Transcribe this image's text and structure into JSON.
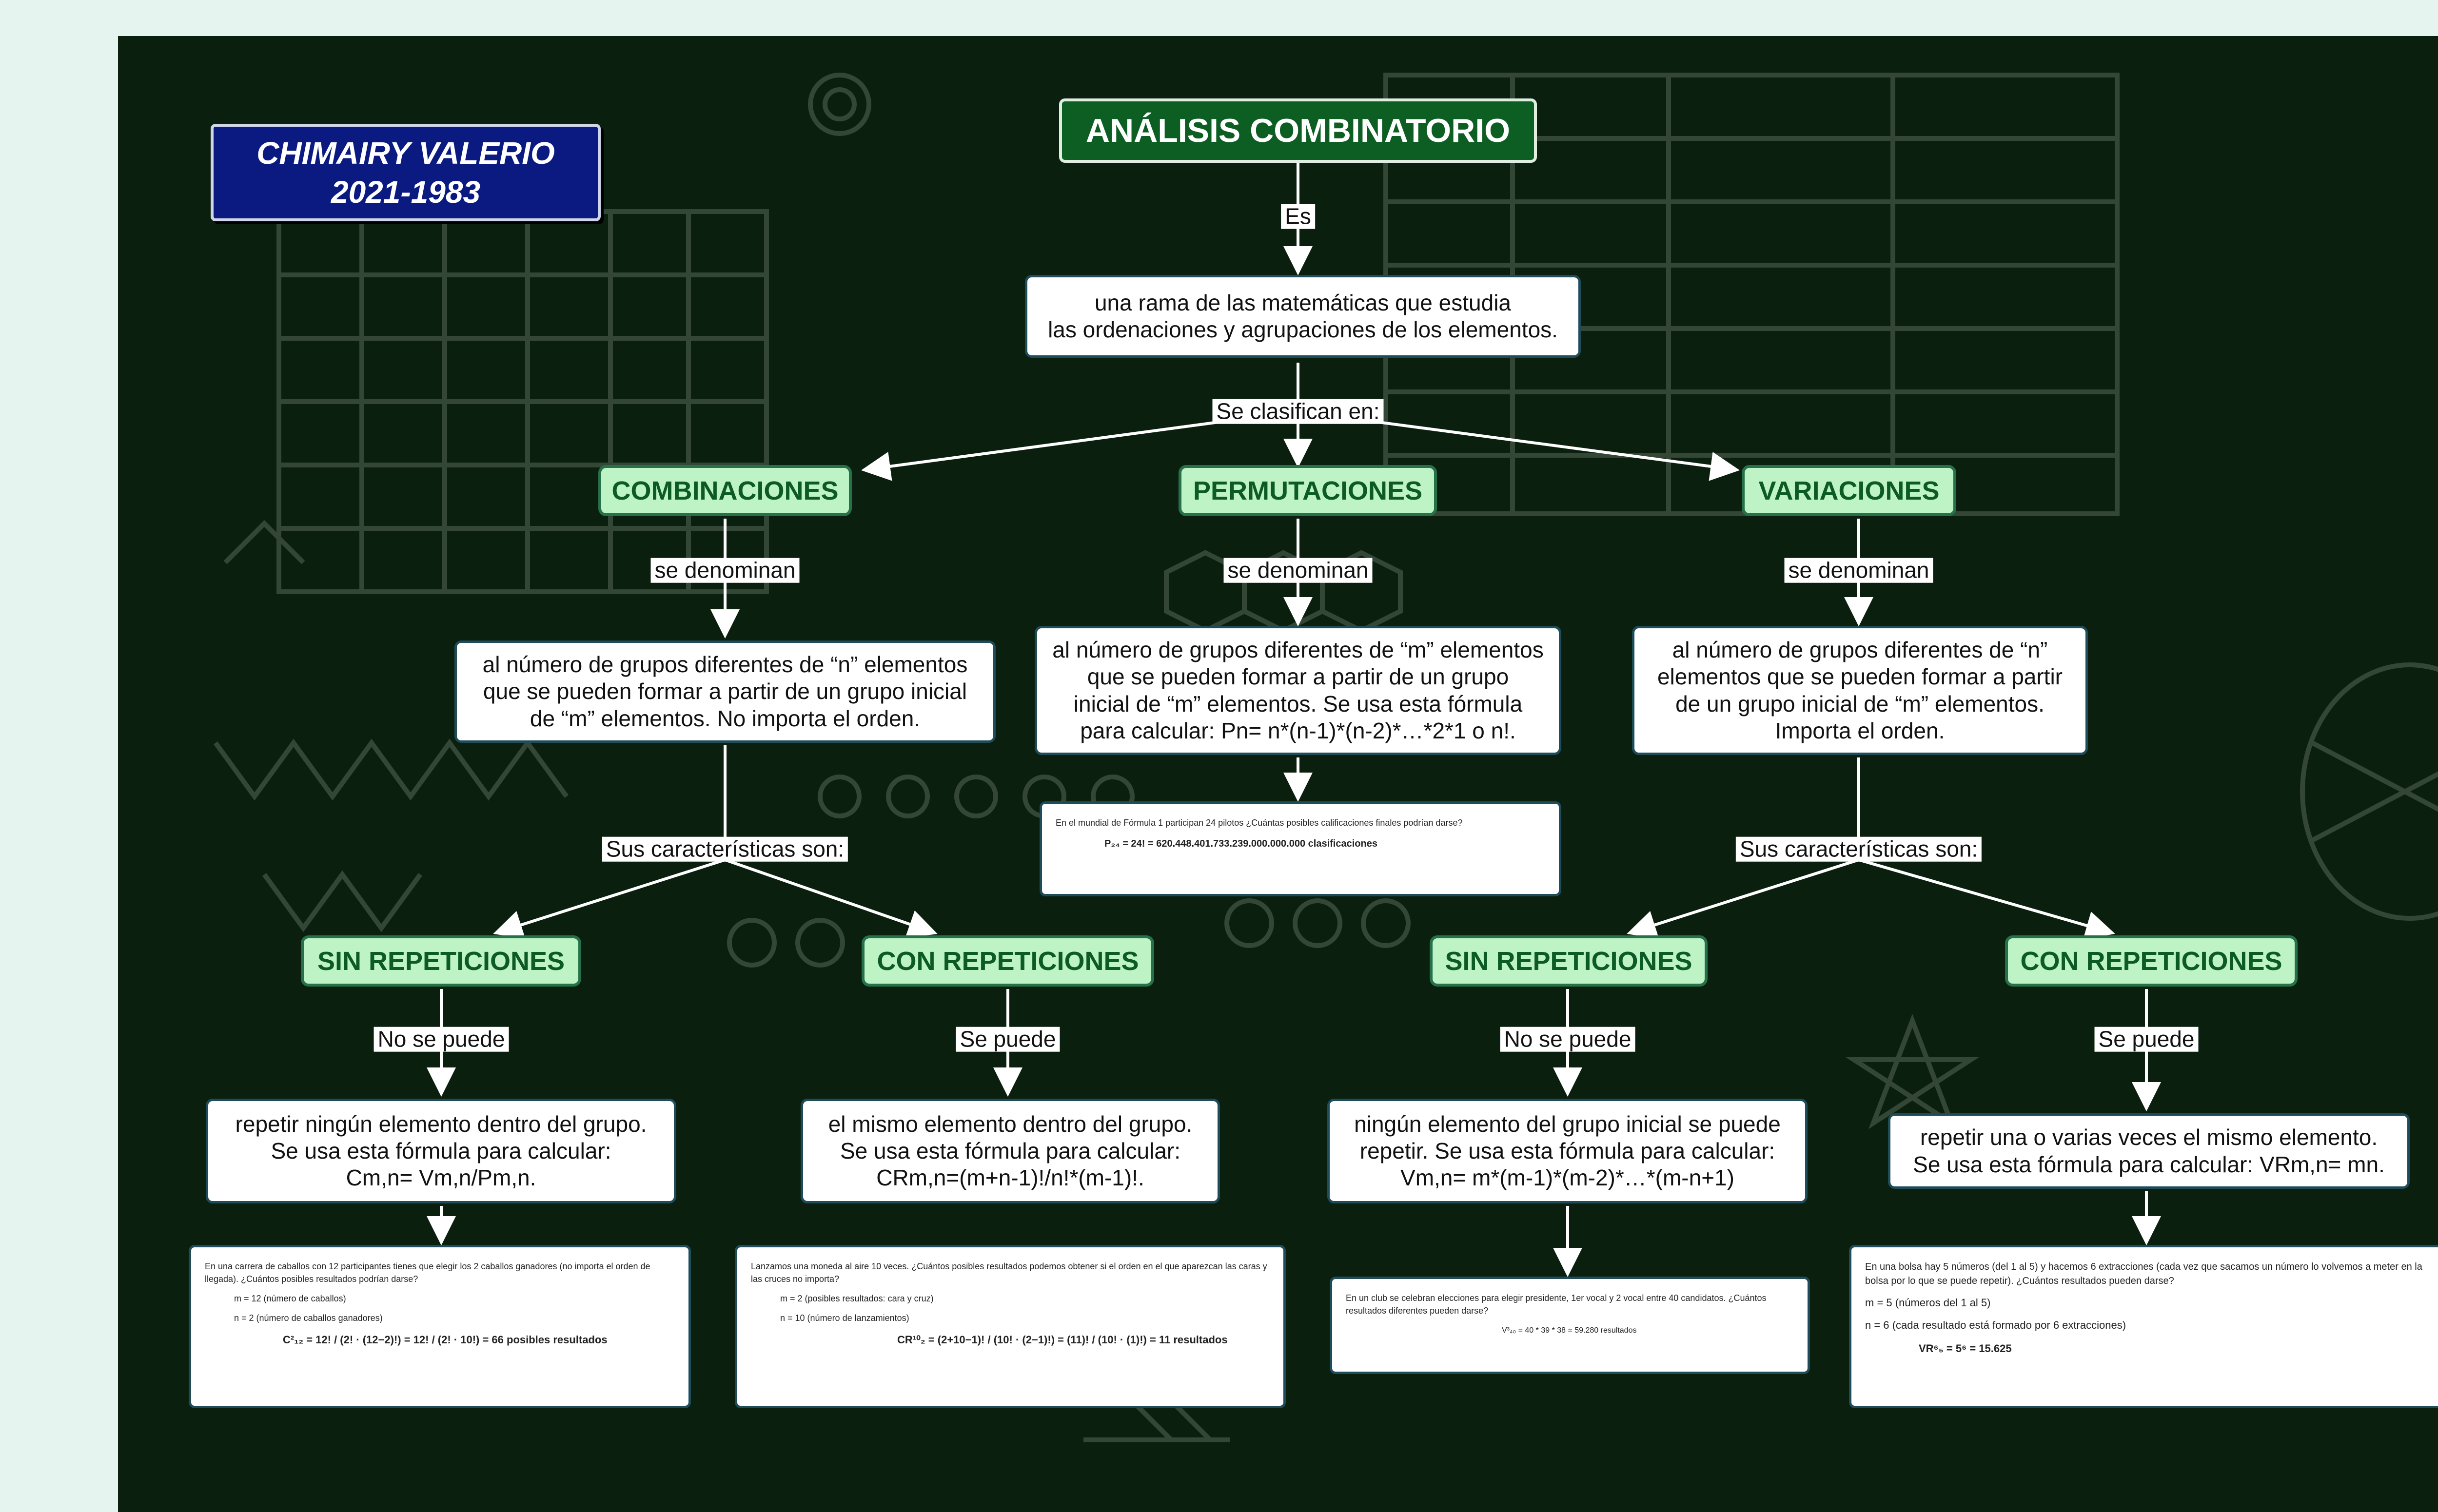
{
  "header": {
    "author_name": "CHIMAIRY VALERIO",
    "author_years": "2021-1983"
  },
  "root": {
    "title": "ANÁLISIS COMBINATORIO",
    "definition": "una rama de las matemáticas que estudia\nlas ordenaciones y agrupaciones de los elementos."
  },
  "connectors": {
    "es": "Es",
    "se_clasifican_en": "Se clasifican en:",
    "se_denominan": "se denominan",
    "sus_caracteristicas_son": "Sus características son:",
    "no_se_puede": "No se puede",
    "se_puede": "Se puede"
  },
  "combinaciones": {
    "title": "COMBINACIONES",
    "definition": "al número de grupos diferentes de “n” elementos\nque se pueden formar a partir de un grupo inicial\nde “m” elementos. No importa el orden.",
    "sin_rep": {
      "title": "SIN REPETICIONES",
      "text": "repetir ningún elemento dentro del grupo.\nSe usa esta fórmula para calcular:\nCm,n= Vm,n/Pm,n.",
      "example": {
        "problem": "En una carrera de caballos con 12 participantes tienes que elegir los 2 caballos ganadores (no importa el orden de llegada). ¿Cuántos posibles resultados podrían darse?",
        "m": "m = 12 (número de caballos)",
        "n": "n = 2 (número de caballos ganadores)",
        "formula": "C²₁₂ = 12! / (2! · (12−2)!) = 12! / (2! · 10!) = 66 posibles resultados"
      }
    },
    "con_rep": {
      "title": "CON REPETICIONES",
      "text": "el mismo elemento dentro del grupo.\nSe usa esta fórmula para calcular:\nCRm,n=(m+n-1)!/n!*(m-1)!.",
      "example": {
        "problem": "Lanzamos una moneda al aire 10 veces. ¿Cuántos posibles resultados podemos obtener si el orden en el que aparezcan las caras y las cruces no importa?",
        "m": "m = 2 (posibles resultados: cara y cruz)",
        "n": "n = 10 (número de lanzamientos)",
        "formula": "CR¹⁰₂ = (2+10−1)! / (10! · (2−1)!) = (11)! / (10! · (1)!) = 11 resultados"
      }
    }
  },
  "permutaciones": {
    "title": "PERMUTACIONES",
    "definition": "al número de grupos diferentes de “m” elementos\nque se pueden formar a partir de un grupo\ninicial de “m” elementos. Se usa esta fórmula\npara calcular: Pn= n*(n-1)*(n-2)*…*2*1 o n!.",
    "example": {
      "problem": "En el mundial de Fórmula 1 participan 24 pilotos ¿Cuántas posibles calificaciones finales podrían darse?",
      "formula": "P₂₄ = 24! = 620.448.401.733.239.000.000.000 clasificaciones"
    }
  },
  "variaciones": {
    "title": "VARIACIONES",
    "definition": "al número de grupos diferentes de “n”\nelementos que se pueden formar a partir\nde un grupo inicial de “m” elementos.\nImporta el orden.",
    "sin_rep": {
      "title": "SIN REPETICIONES",
      "text": "ningún elemento del grupo inicial se puede\nrepetir. Se usa esta fórmula para calcular:\nVm,n= m*(m-1)*(m-2)*…*(m-n+1)",
      "example": {
        "problem": "En un club se celebran elecciones para elegir presidente, 1er vocal y 2 vocal entre 40 candidatos. ¿Cuántos resultados diferentes pueden darse?",
        "formula": "V³₄₀ = 40 * 39 * 38 = 59.280 resultados"
      }
    },
    "con_rep": {
      "title": "CON REPETICIONES",
      "text": "repetir una o varias veces el mismo elemento.\nSe usa esta fórmula para calcular: VRm,n= mn.",
      "example": {
        "problem": "En una bolsa hay 5 números (del 1 al 5) y hacemos 6 extracciones (cada vez que sacamos un número lo volvemos a meter en la bolsa por lo que se puede repetir). ¿Cuántos resultados pueden darse?",
        "m": "m = 5 (números del 1 al 5)",
        "n": "n = 6 (cada resultado está formado por 6 extracciones)",
        "formula": "VR⁶₅ = 5⁶ = 15.625"
      }
    }
  }
}
